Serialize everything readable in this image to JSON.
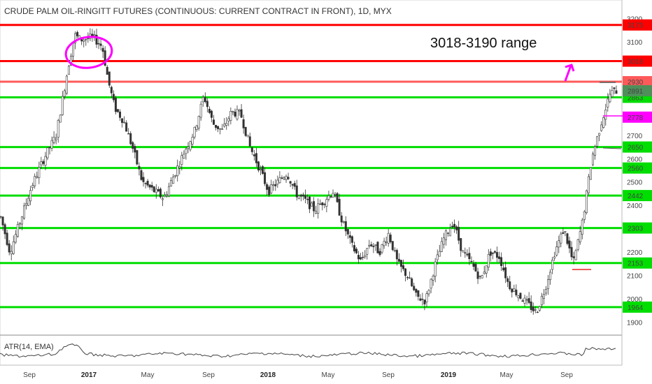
{
  "chart_data": {
    "type": "candlestick",
    "title": "CRUDE PALM OIL-RINGITT FUTURES (CONTINUOUS: CURRENT CONTRACT IN FRONT), 1D, MYX",
    "annotation": "3018-3190 range",
    "indicator_label": "ATR(14, EMA)",
    "y_ticks": [
      "1900",
      "2000",
      "2100",
      "2200",
      "2300",
      "2400",
      "2500",
      "2600",
      "2700",
      "3100",
      "3200"
    ],
    "ylim": [
      1850,
      3250
    ],
    "x_ticks": [
      "Sep",
      "2017",
      "May",
      "Sep",
      "2018",
      "May",
      "Sep",
      "2019",
      "May",
      "Sep"
    ],
    "x_tick_bold": [
      "2017",
      "2018",
      "2019"
    ],
    "levels": [
      {
        "value": 3173,
        "label": "3173",
        "color": "#ff0000"
      },
      {
        "value": 3018,
        "label": "3018",
        "color": "#ff0000"
      },
      {
        "value": 2930,
        "label": "2930",
        "color": "#ff5a5a"
      },
      {
        "value": 2863,
        "label": "2863",
        "color": "#00dd00"
      },
      {
        "value": 2650,
        "label": "2650",
        "color": "#00dd00"
      },
      {
        "value": 2560,
        "label": "2560",
        "color": "#00dd00"
      },
      {
        "value": 2442,
        "label": "2442",
        "color": "#00dd00"
      },
      {
        "value": 2303,
        "label": "2303",
        "color": "#00dd00"
      },
      {
        "value": 2153,
        "label": "2153",
        "color": "#00dd00"
      },
      {
        "value": 1964,
        "label": "1964",
        "color": "#00dd00"
      }
    ],
    "price_badges": [
      {
        "value": 2891,
        "label": "2891",
        "color": "#4f8f5a"
      },
      {
        "value": 2778,
        "label": "2778",
        "color": "#ff00ff"
      }
    ],
    "price_path": [
      [
        0,
        2350
      ],
      [
        0.015,
        2200
      ],
      [
        0.03,
        2320
      ],
      [
        0.05,
        2480
      ],
      [
        0.07,
        2600
      ],
      [
        0.09,
        2700
      ],
      [
        0.1,
        2850
      ],
      [
        0.11,
        3000
      ],
      [
        0.12,
        3130
      ],
      [
        0.13,
        3110
      ],
      [
        0.15,
        3120
      ],
      [
        0.165,
        3080
      ],
      [
        0.175,
        2930
      ],
      [
        0.185,
        2820
      ],
      [
        0.2,
        2760
      ],
      [
        0.215,
        2640
      ],
      [
        0.23,
        2500
      ],
      [
        0.25,
        2460
      ],
      [
        0.265,
        2430
      ],
      [
        0.28,
        2520
      ],
      [
        0.3,
        2640
      ],
      [
        0.315,
        2720
      ],
      [
        0.33,
        2870
      ],
      [
        0.345,
        2750
      ],
      [
        0.36,
        2720
      ],
      [
        0.375,
        2800
      ],
      [
        0.39,
        2790
      ],
      [
        0.405,
        2650
      ],
      [
        0.42,
        2560
      ],
      [
        0.435,
        2460
      ],
      [
        0.45,
        2500
      ],
      [
        0.465,
        2540
      ],
      [
        0.48,
        2450
      ],
      [
        0.495,
        2420
      ],
      [
        0.51,
        2380
      ],
      [
        0.525,
        2420
      ],
      [
        0.54,
        2460
      ],
      [
        0.555,
        2330
      ],
      [
        0.57,
        2230
      ],
      [
        0.585,
        2160
      ],
      [
        0.6,
        2240
      ],
      [
        0.615,
        2200
      ],
      [
        0.63,
        2280
      ],
      [
        0.645,
        2150
      ],
      [
        0.66,
        2100
      ],
      [
        0.675,
        2010
      ],
      [
        0.69,
        1990
      ],
      [
        0.705,
        2140
      ],
      [
        0.72,
        2260
      ],
      [
        0.735,
        2330
      ],
      [
        0.75,
        2200
      ],
      [
        0.765,
        2150
      ],
      [
        0.78,
        2080
      ],
      [
        0.795,
        2200
      ],
      [
        0.81,
        2180
      ],
      [
        0.825,
        2060
      ],
      [
        0.84,
        2020
      ],
      [
        0.855,
        1980
      ],
      [
        0.87,
        1940
      ],
      [
        0.885,
        2050
      ],
      [
        0.9,
        2200
      ],
      [
        0.915,
        2300
      ],
      [
        0.93,
        2150
      ],
      [
        0.945,
        2330
      ],
      [
        0.96,
        2600
      ],
      [
        0.975,
        2750
      ],
      [
        0.99,
        2880
      ],
      [
        1,
        2891
      ]
    ]
  }
}
